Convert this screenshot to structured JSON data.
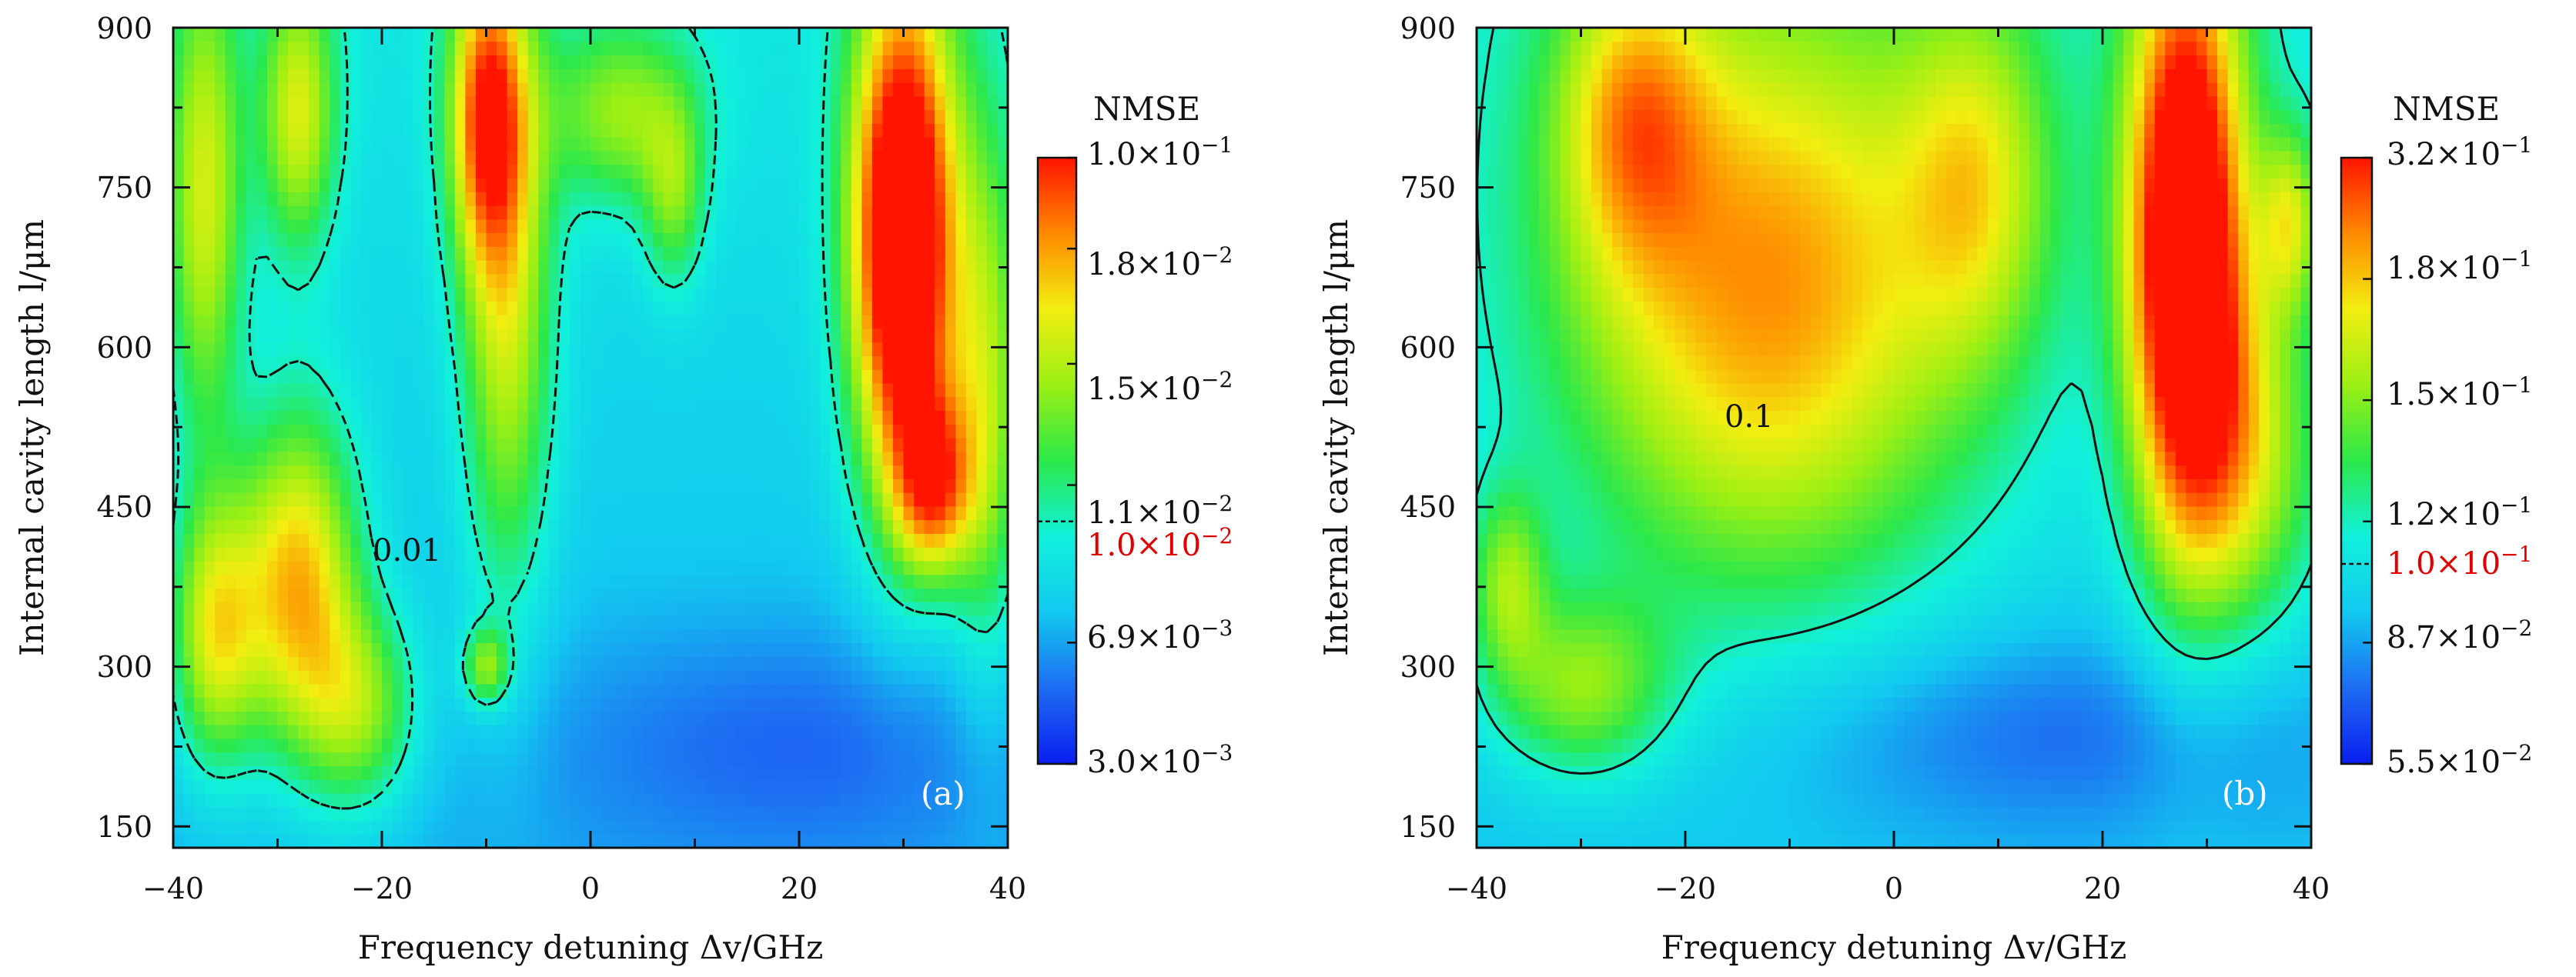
{
  "colors": {
    "colormap": [
      "#0a1ef0",
      "#1e6cf2",
      "#12c8f0",
      "#12f0dc",
      "#2ce84a",
      "#9bef14",
      "#f2ee10",
      "#ff8a00",
      "#ff1400"
    ],
    "contour_line": "#111111",
    "red_label": "#e00000"
  },
  "chart_data": [
    {
      "type": "heatmap",
      "panel": "(a)",
      "xlabel": "Frequency detuning Δv/GHz",
      "ylabel": "Internal cavity length l/μm",
      "xlim": [
        -40,
        40
      ],
      "ylim": [
        130,
        900
      ],
      "xticks": [
        "−40",
        "−20",
        "0",
        "20",
        "40"
      ],
      "xtick_values": [
        -40,
        -20,
        0,
        20,
        40
      ],
      "yticks": [
        "150",
        "300",
        "450",
        "600",
        "750",
        "900"
      ],
      "ytick_values": [
        150,
        300,
        450,
        600,
        750,
        900
      ],
      "colorbar": {
        "title": "NMSE",
        "range": [
          0.003,
          0.1
        ],
        "tick_labels": [
          "1.0×10",
          "1.8×10",
          "1.5×10",
          "1.1×10",
          "1.0×10",
          "6.9×10",
          "3.0×10"
        ],
        "tick_exponents": [
          "−1",
          "−2",
          "−2",
          "−2",
          "−2",
          "−3",
          "−3"
        ],
        "tick_fraction": [
          1.0,
          0.85,
          0.66,
          0.46,
          0.4,
          0.2,
          0.0
        ],
        "highlight_index": 4
      },
      "contour": {
        "level_label": "0.01",
        "label_at": [
          -19,
          400
        ],
        "style": "dashed"
      },
      "blobs": [
        {
          "x": 30,
          "y": 700,
          "sx": 3.5,
          "sy": 170,
          "a": 1.0
        },
        {
          "x": 33,
          "y": 470,
          "sx": 2.5,
          "sy": 60,
          "a": 0.5
        },
        {
          "x": 38,
          "y": 550,
          "sx": 2.5,
          "sy": 180,
          "a": 0.35
        },
        {
          "x": -28,
          "y": 380,
          "sx": 4,
          "sy": 110,
          "a": 0.55
        },
        {
          "x": -36,
          "y": 330,
          "sx": 3,
          "sy": 90,
          "a": 0.45
        },
        {
          "x": -37,
          "y": 740,
          "sx": 2.5,
          "sy": 160,
          "a": 0.4
        },
        {
          "x": -28,
          "y": 820,
          "sx": 2.5,
          "sy": 90,
          "a": 0.4
        },
        {
          "x": -10,
          "y": 820,
          "sx": 2.5,
          "sy": 100,
          "a": 0.55
        },
        {
          "x": -8,
          "y": 640,
          "sx": 3,
          "sy": 200,
          "a": 0.4
        },
        {
          "x": -22,
          "y": 260,
          "sx": 4,
          "sy": 70,
          "a": 0.35
        },
        {
          "x": -10,
          "y": 300,
          "sx": 1.5,
          "sy": 25,
          "a": 0.35
        },
        {
          "x": 3,
          "y": 820,
          "sx": 5,
          "sy": 60,
          "a": 0.3
        },
        {
          "x": 8,
          "y": 740,
          "sx": 2,
          "sy": 60,
          "a": 0.25
        }
      ],
      "base": {
        "b0": 0.22,
        "by": 0.12,
        "dip_x": 20,
        "dip_y": 230,
        "dip_sx": 18,
        "dip_sy": 80,
        "dip_a": 0.12
      },
      "contour_level": 0.4,
      "panel_letter": "(a)"
    },
    {
      "type": "heatmap",
      "panel": "(b)",
      "xlabel": "Frequency detuning Δv/GHz",
      "ylabel": "Internal cavity length l/μm",
      "xlim": [
        -40,
        40
      ],
      "ylim": [
        130,
        900
      ],
      "xticks": [
        "−40",
        "−20",
        "0",
        "20",
        "40"
      ],
      "xtick_values": [
        -40,
        -20,
        0,
        20,
        40
      ],
      "yticks": [
        "150",
        "300",
        "450",
        "600",
        "750",
        "900"
      ],
      "ytick_values": [
        150,
        300,
        450,
        600,
        750,
        900
      ],
      "colorbar": {
        "title": "NMSE",
        "range": [
          0.055,
          0.32
        ],
        "tick_labels": [
          "3.2×10",
          "1.8×10",
          "1.5×10",
          "1.2×10",
          "1.0×10",
          "8.7×10",
          "5.5×10"
        ],
        "tick_exponents": [
          "−1",
          "−1",
          "−1",
          "−1",
          "−1",
          "−2",
          "−2"
        ],
        "tick_fraction": [
          1.0,
          0.8,
          0.6,
          0.4,
          0.33,
          0.2,
          0.0
        ],
        "highlight_index": 4
      },
      "contour": {
        "level_label": "0.1",
        "label_at": [
          -14,
          530
        ],
        "style": "solid"
      },
      "blobs": [
        {
          "x": 28,
          "y": 700,
          "sx": 4,
          "sy": 200,
          "a": 0.95
        },
        {
          "x": 38,
          "y": 720,
          "sx": 2,
          "sy": 60,
          "a": 0.35
        },
        {
          "x": 34,
          "y": 500,
          "sx": 5,
          "sy": 120,
          "a": 0.35
        },
        {
          "x": -12,
          "y": 650,
          "sx": 14,
          "sy": 200,
          "a": 0.55
        },
        {
          "x": -25,
          "y": 820,
          "sx": 5,
          "sy": 100,
          "a": 0.35
        },
        {
          "x": 8,
          "y": 760,
          "sx": 5,
          "sy": 120,
          "a": 0.3
        },
        {
          "x": -30,
          "y": 280,
          "sx": 6,
          "sy": 60,
          "a": 0.32
        },
        {
          "x": -37,
          "y": 380,
          "sx": 2.5,
          "sy": 60,
          "a": 0.3
        }
      ],
      "base": {
        "b0": 0.25,
        "by": 0.1,
        "dip_x": 15,
        "dip_y": 240,
        "dip_sx": 20,
        "dip_sy": 70,
        "dip_a": 0.14
      },
      "contour_level": 0.4,
      "panel_letter": "(b)"
    }
  ]
}
